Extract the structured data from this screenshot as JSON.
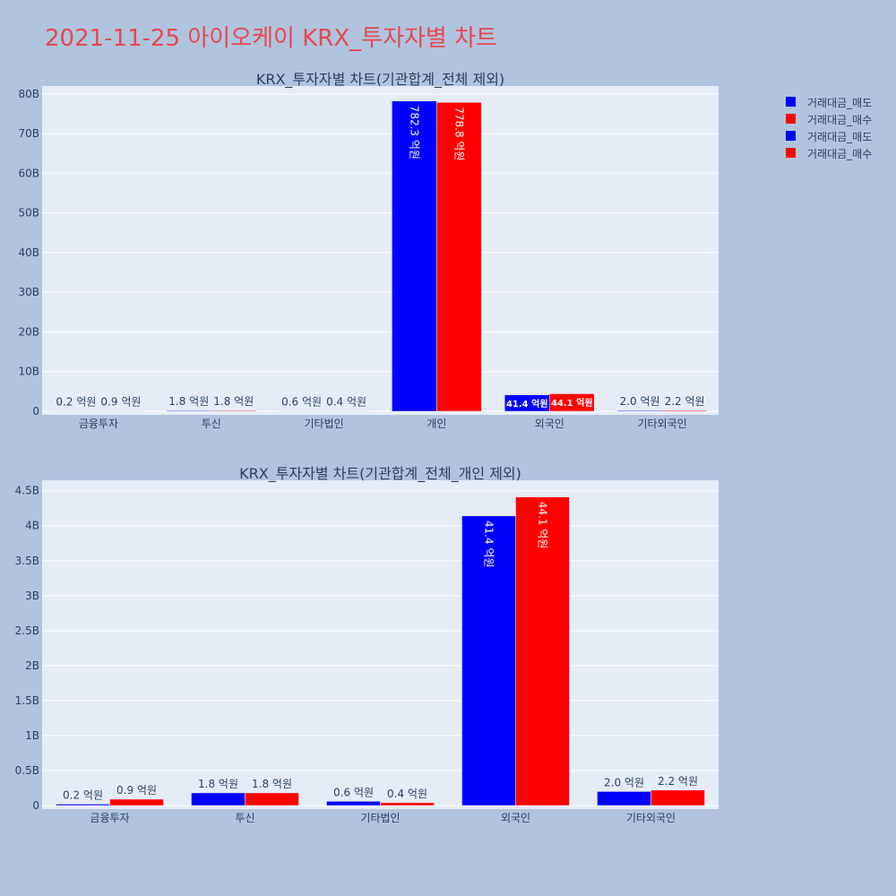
{
  "page_title": "2021-11-25 아이오케이 KRX_투자자별 차트",
  "colors": {
    "background": "#b0c4de",
    "plot_bg": "#e5ecf6",
    "grid": "#ffffff",
    "title": "#e8474f",
    "text": "#2a3f5f",
    "sell": "#0000ff",
    "buy": "#ff0000"
  },
  "legend": {
    "placement": "top-right",
    "items": [
      {
        "label": "거래대금_매도",
        "color": "#0000ff"
      },
      {
        "label": "거래대금_매수",
        "color": "#ff0000"
      },
      {
        "label": "거래대금_매도",
        "color": "#0000ff"
      },
      {
        "label": "거래대금_매수",
        "color": "#ff0000"
      }
    ]
  },
  "chart_data": [
    {
      "type": "bar",
      "title": "KRX_투자자별 차트(기관합계_전체 제외)",
      "categories": [
        "금융투자",
        "투신",
        "기타법인",
        "개인",
        "외국인",
        "기타외국인"
      ],
      "series": [
        {
          "name": "거래대금_매도",
          "color": "#0000ff",
          "values": [
            20000000,
            180000000,
            60000000,
            78230000000,
            4140000000,
            200000000
          ],
          "labels": [
            "0.2 억원",
            "1.8 억원",
            "0.6 억원",
            "782.3 억원",
            "41.4 억원",
            "2.0 억원"
          ]
        },
        {
          "name": "거래대금_매수",
          "color": "#ff0000",
          "values": [
            90000000,
            180000000,
            40000000,
            77880000000,
            4410000000,
            220000000
          ],
          "labels": [
            "0.9 억원",
            "1.8 억원",
            "0.4 억원",
            "778.8 억원",
            "44.1 억원",
            "2.2 억원"
          ]
        }
      ],
      "ylim": [
        0,
        82000000000
      ],
      "yticks": [
        0,
        10000000000,
        20000000000,
        30000000000,
        40000000000,
        50000000000,
        60000000000,
        70000000000,
        80000000000
      ],
      "ytick_labels": [
        "0",
        "10B",
        "20B",
        "30B",
        "40B",
        "50B",
        "60B",
        "70B",
        "80B"
      ],
      "grid": true
    },
    {
      "type": "bar",
      "title": "KRX_투자자별 차트(기관합계_전체_개인 제외)",
      "categories": [
        "금융투자",
        "투신",
        "기타법인",
        "외국인",
        "기타외국인"
      ],
      "series": [
        {
          "name": "거래대금_매도",
          "color": "#0000ff",
          "values": [
            20000000,
            180000000,
            60000000,
            4140000000,
            200000000
          ],
          "labels": [
            "0.2 억원",
            "1.8 억원",
            "0.6 억원",
            "41.4 억원",
            "2.0 억원"
          ]
        },
        {
          "name": "거래대금_매수",
          "color": "#ff0000",
          "values": [
            90000000,
            180000000,
            40000000,
            4410000000,
            220000000
          ],
          "labels": [
            "0.9 억원",
            "1.8 억원",
            "0.4 억원",
            "44.1 억원",
            "2.2 억원"
          ]
        }
      ],
      "ylim": [
        0,
        4650000000
      ],
      "yticks": [
        0,
        500000000,
        1000000000,
        1500000000,
        2000000000,
        2500000000,
        3000000000,
        3500000000,
        4000000000,
        4500000000
      ],
      "ytick_labels": [
        "0",
        "0.5B",
        "1B",
        "1.5B",
        "2B",
        "2.5B",
        "3B",
        "3.5B",
        "4B",
        "4.5B"
      ],
      "grid": true
    }
  ]
}
